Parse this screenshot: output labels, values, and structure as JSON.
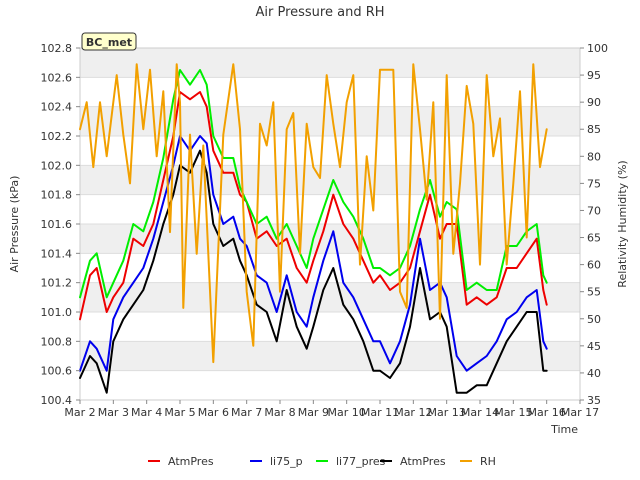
{
  "chart_data": {
    "type": "line",
    "title": "Air Pressure and RH",
    "site_label": "BC_met",
    "xlabel": "Time",
    "ylabel_left": "Air Pressure (kPa)",
    "ylabel_right": "Relativity Humidity (%)",
    "x_ticks": [
      "Mar 2",
      "Mar 3",
      "Mar 4",
      "Mar 5",
      "Mar 6",
      "Mar 7",
      "Mar 8",
      "Mar 9",
      "Mar 10",
      "Mar 11",
      "Mar 12",
      "Mar 13",
      "Mar 14",
      "Mar 15",
      "Mar 16",
      "Mar 17"
    ],
    "xlim": [
      0,
      15
    ],
    "ylim_left": [
      100.4,
      102.8
    ],
    "y_ticks_left": [
      "100.4",
      "100.6",
      "100.8",
      "101.0",
      "101.2",
      "101.4",
      "101.6",
      "101.8",
      "102.0",
      "102.2",
      "102.4",
      "102.6",
      "102.8"
    ],
    "ylim_right": [
      35,
      100
    ],
    "y_ticks_right": [
      "35",
      "40",
      "45",
      "50",
      "55",
      "60",
      "65",
      "70",
      "75",
      "80",
      "85",
      "90",
      "95",
      "100"
    ],
    "grid": "horizontal bands",
    "legend_position": "bottom",
    "x_unit": "days after Mar 2",
    "series": [
      {
        "name": "AtmPres",
        "axis": "left",
        "color": "#ee0000",
        "x": [
          0.0,
          0.3,
          0.5,
          0.8,
          1.0,
          1.3,
          1.6,
          1.9,
          2.2,
          2.5,
          2.8,
          3.0,
          3.3,
          3.6,
          3.8,
          4.0,
          4.3,
          4.6,
          4.8,
          5.0,
          5.3,
          5.6,
          5.9,
          6.2,
          6.5,
          6.8,
          7.0,
          7.3,
          7.6,
          7.9,
          8.2,
          8.5,
          8.8,
          9.0,
          9.3,
          9.6,
          9.9,
          10.2,
          10.5,
          10.8,
          11.0,
          11.3,
          11.6,
          11.9,
          12.2,
          12.5,
          12.8,
          13.1,
          13.4,
          13.7,
          13.9,
          14.0
        ],
        "y": [
          100.95,
          101.25,
          101.3,
          101.0,
          101.1,
          101.2,
          101.5,
          101.45,
          101.6,
          101.9,
          102.2,
          102.5,
          102.45,
          102.5,
          102.4,
          102.1,
          101.95,
          101.95,
          101.8,
          101.75,
          101.5,
          101.55,
          101.45,
          101.5,
          101.3,
          101.2,
          101.35,
          101.55,
          101.8,
          101.6,
          101.5,
          101.35,
          101.2,
          101.25,
          101.15,
          101.2,
          101.3,
          101.55,
          101.8,
          101.5,
          101.6,
          101.6,
          101.05,
          101.1,
          101.05,
          101.1,
          101.3,
          101.3,
          101.4,
          101.5,
          101.15,
          101.05
        ]
      },
      {
        "name": "li75_p",
        "axis": "left",
        "color": "#0000ee",
        "x": [
          0.0,
          0.3,
          0.5,
          0.8,
          1.0,
          1.3,
          1.6,
          1.9,
          2.2,
          2.5,
          2.8,
          3.0,
          3.3,
          3.6,
          3.8,
          4.0,
          4.3,
          4.6,
          4.8,
          5.0,
          5.3,
          5.6,
          5.9,
          6.2,
          6.5,
          6.8,
          7.0,
          7.3,
          7.6,
          7.9,
          8.2,
          8.5,
          8.8,
          9.0,
          9.3,
          9.6,
          9.9,
          10.2,
          10.5,
          10.8,
          11.0,
          11.3,
          11.6,
          11.9,
          12.2,
          12.5,
          12.8,
          13.1,
          13.4,
          13.7,
          13.9,
          14.0
        ],
        "y": [
          100.6,
          100.8,
          100.75,
          100.6,
          100.95,
          101.1,
          101.2,
          101.3,
          101.5,
          101.75,
          102.0,
          102.2,
          102.1,
          102.2,
          102.15,
          101.8,
          101.6,
          101.65,
          101.5,
          101.45,
          101.25,
          101.2,
          101.0,
          101.25,
          101.0,
          100.9,
          101.1,
          101.35,
          101.55,
          101.2,
          101.1,
          100.95,
          100.8,
          100.8,
          100.65,
          100.8,
          101.05,
          101.5,
          101.15,
          101.2,
          101.1,
          100.7,
          100.6,
          100.65,
          100.7,
          100.8,
          100.95,
          101.0,
          101.1,
          101.15,
          100.8,
          100.75
        ]
      },
      {
        "name": "li77_pres",
        "axis": "left",
        "color": "#00ee00",
        "x": [
          0.0,
          0.3,
          0.5,
          0.8,
          1.0,
          1.3,
          1.6,
          1.9,
          2.2,
          2.5,
          2.8,
          3.0,
          3.3,
          3.6,
          3.8,
          4.0,
          4.3,
          4.6,
          4.8,
          5.0,
          5.3,
          5.6,
          5.9,
          6.2,
          6.5,
          6.8,
          7.0,
          7.3,
          7.6,
          7.9,
          8.2,
          8.5,
          8.8,
          9.0,
          9.3,
          9.6,
          9.9,
          10.2,
          10.5,
          10.8,
          11.0,
          11.3,
          11.6,
          11.9,
          12.2,
          12.5,
          12.8,
          13.1,
          13.4,
          13.7,
          13.9,
          14.0
        ],
        "y": [
          101.1,
          101.35,
          101.4,
          101.1,
          101.2,
          101.35,
          101.6,
          101.55,
          101.75,
          102.05,
          102.45,
          102.65,
          102.55,
          102.65,
          102.55,
          102.2,
          102.05,
          102.05,
          101.85,
          101.75,
          101.6,
          101.65,
          101.5,
          101.6,
          101.45,
          101.3,
          101.5,
          101.7,
          101.9,
          101.75,
          101.65,
          101.5,
          101.3,
          101.3,
          101.25,
          101.3,
          101.45,
          101.7,
          101.9,
          101.65,
          101.75,
          101.7,
          101.15,
          101.2,
          101.15,
          101.15,
          101.45,
          101.45,
          101.55,
          101.6,
          101.25,
          101.2
        ]
      },
      {
        "name": "AtmPres",
        "axis": "left",
        "color": "#000000",
        "x": [
          0.0,
          0.3,
          0.5,
          0.8,
          1.0,
          1.3,
          1.6,
          1.9,
          2.2,
          2.5,
          2.8,
          3.0,
          3.3,
          3.6,
          3.8,
          4.0,
          4.3,
          4.6,
          4.8,
          5.0,
          5.3,
          5.6,
          5.9,
          6.2,
          6.5,
          6.8,
          7.0,
          7.3,
          7.6,
          7.9,
          8.2,
          8.5,
          8.8,
          9.0,
          9.3,
          9.6,
          9.9,
          10.2,
          10.5,
          10.8,
          11.0,
          11.3,
          11.6,
          11.9,
          12.2,
          12.5,
          12.8,
          13.1,
          13.4,
          13.7,
          13.9,
          14.0
        ],
        "y": [
          100.55,
          100.7,
          100.65,
          100.45,
          100.8,
          100.95,
          101.05,
          101.15,
          101.35,
          101.6,
          101.8,
          102.0,
          101.95,
          102.1,
          101.95,
          101.6,
          101.45,
          101.5,
          101.35,
          101.25,
          101.05,
          101.0,
          100.8,
          101.15,
          100.9,
          100.75,
          100.9,
          101.15,
          101.3,
          101.05,
          100.95,
          100.8,
          100.6,
          100.6,
          100.55,
          100.65,
          100.9,
          101.3,
          100.95,
          101.0,
          100.9,
          100.45,
          100.45,
          100.5,
          100.5,
          100.65,
          100.8,
          100.9,
          101.0,
          101.0,
          100.6,
          100.6
        ]
      },
      {
        "name": "RH",
        "axis": "right",
        "color": "#f2a000",
        "x": [
          0.0,
          0.2,
          0.4,
          0.6,
          0.8,
          1.0,
          1.1,
          1.3,
          1.5,
          1.7,
          1.9,
          2.1,
          2.3,
          2.5,
          2.7,
          2.9,
          3.0,
          3.1,
          3.3,
          3.5,
          3.7,
          4.0,
          4.3,
          4.6,
          4.8,
          5.0,
          5.2,
          5.4,
          5.6,
          5.8,
          6.0,
          6.2,
          6.4,
          6.6,
          6.8,
          7.0,
          7.2,
          7.4,
          7.6,
          7.8,
          8.0,
          8.2,
          8.4,
          8.6,
          8.8,
          9.0,
          9.2,
          9.4,
          9.6,
          9.8,
          10.0,
          10.2,
          10.4,
          10.6,
          10.8,
          11.0,
          11.2,
          11.4,
          11.6,
          11.8,
          12.0,
          12.2,
          12.4,
          12.6,
          12.8,
          13.0,
          13.2,
          13.4,
          13.6,
          13.8,
          14.0
        ],
        "y": [
          85,
          90,
          78,
          90,
          80,
          90,
          95,
          84,
          75,
          97,
          85,
          96,
          80,
          92,
          66,
          97,
          90,
          52,
          84,
          62,
          82,
          42,
          84,
          97,
          85,
          55,
          45,
          86,
          82,
          90,
          55,
          85,
          88,
          62,
          86,
          78,
          76,
          95,
          86,
          78,
          90,
          95,
          60,
          80,
          70,
          96,
          96,
          96,
          55,
          52,
          97,
          85,
          72,
          90,
          50,
          95,
          62,
          75,
          93,
          86,
          60,
          95,
          80,
          87,
          60,
          75,
          92,
          65,
          97,
          78,
          85
        ]
      }
    ]
  },
  "legend": [
    {
      "label": "AtmPres",
      "color": "#ee0000"
    },
    {
      "label": "li75_p",
      "color": "#0000ee"
    },
    {
      "label": "li77_pres",
      "color": "#00ee00"
    },
    {
      "label": "AtmPres",
      "color": "#000000"
    },
    {
      "label": "RH",
      "color": "#f2a000"
    }
  ]
}
